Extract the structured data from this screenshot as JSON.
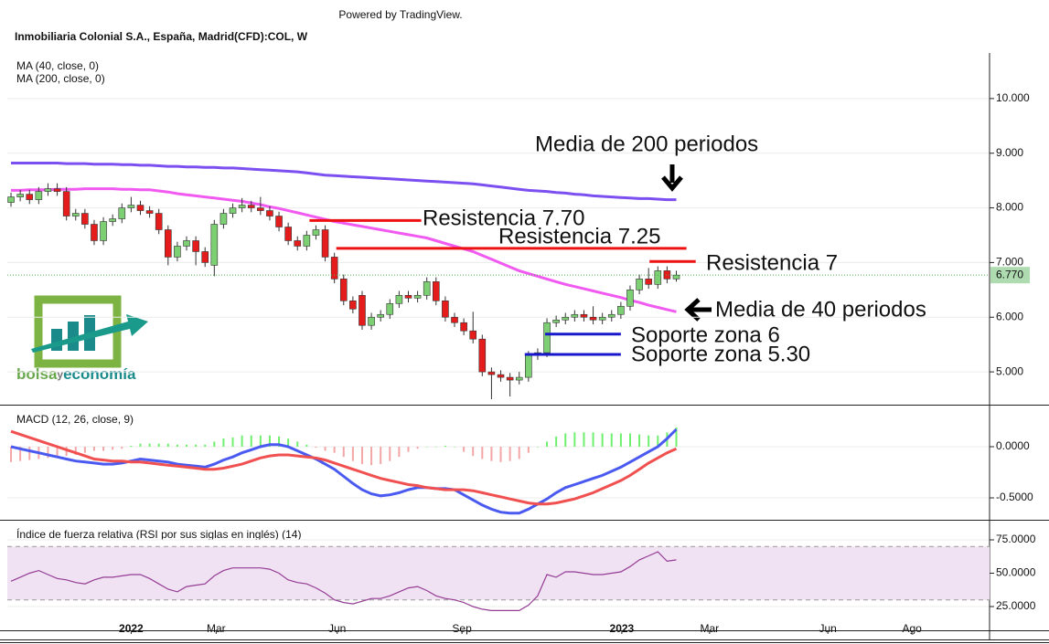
{
  "header": {
    "powered": "Powered by TradingView."
  },
  "chart_data": [
    {
      "type": "candlestick",
      "title": "Inmobiliaria Colonial S.A., España, Madrid(CFD):COL, W",
      "xlim": [
        -0.4,
        105.9
      ],
      "xticks": [
        {
          "value": 13.0,
          "label": "2022"
        },
        {
          "value": 22.2,
          "label": "Mar"
        },
        {
          "value": 35.3,
          "label": "Jun"
        },
        {
          "value": 48.8,
          "label": "Sep"
        },
        {
          "value": 66.1,
          "label": "2023"
        },
        {
          "value": 75.6,
          "label": "Mar"
        },
        {
          "value": 88.4,
          "label": "Jun"
        },
        {
          "value": 97.5,
          "label": "Ago"
        }
      ],
      "ylim": [
        4.4,
        10.8
      ],
      "yticks": [
        {
          "value": 5,
          "label": "5.000"
        },
        {
          "value": 6,
          "label": "6.000"
        },
        {
          "value": 7,
          "label": "7.000"
        },
        {
          "value": 8,
          "label": "8.000"
        },
        {
          "value": 9,
          "label": "9.000"
        },
        {
          "value": 10,
          "label": "10.000"
        }
      ],
      "up_color": "#7ccf72",
      "down_color": "#e41c1c",
      "open": [
        8.1,
        8.2,
        8.25,
        8.15,
        8.3,
        8.35,
        8.3,
        7.85,
        7.9,
        7.7,
        7.4,
        7.75,
        7.8,
        8.0,
        8.05,
        7.95,
        7.9,
        7.6,
        7.1,
        7.3,
        7.4,
        7.2,
        6.95,
        7.7,
        7.9,
        8.0,
        8.05,
        8.0,
        7.95,
        7.85,
        7.65,
        7.4,
        7.3,
        7.5,
        7.6,
        7.1,
        6.7,
        6.3,
        6.4,
        5.85,
        6.0,
        6.05,
        6.25,
        6.4,
        6.35,
        6.4,
        6.65,
        6.3,
        6.0,
        5.9,
        5.75,
        5.6,
        5.0,
        4.95,
        4.9,
        4.85,
        4.9,
        5.3,
        5.35,
        5.9,
        5.95,
        6.0,
        6.05,
        6.0,
        5.95,
        6.0,
        6.05,
        6.2,
        6.5,
        6.7,
        6.6,
        6.85,
        6.7
      ],
      "high": [
        8.28,
        8.33,
        8.33,
        8.38,
        8.45,
        8.45,
        8.38,
        7.98,
        7.98,
        7.78,
        7.83,
        7.88,
        8.08,
        8.2,
        8.13,
        8.03,
        7.98,
        7.68,
        7.38,
        7.48,
        7.48,
        7.28,
        7.78,
        7.98,
        8.08,
        8.18,
        8.13,
        8.2,
        8.03,
        7.93,
        7.73,
        7.48,
        7.58,
        7.68,
        7.68,
        7.18,
        6.78,
        6.38,
        6.48,
        6.08,
        6.13,
        6.33,
        6.48,
        6.48,
        6.48,
        6.73,
        6.73,
        6.38,
        6.08,
        5.98,
        6.1,
        5.68,
        5.08,
        5.03,
        4.98,
        5.0,
        5.38,
        5.43,
        5.98,
        6.03,
        6.08,
        6.13,
        6.13,
        6.2,
        6.08,
        6.13,
        6.28,
        6.58,
        6.78,
        6.9,
        6.93,
        6.93,
        6.85
      ],
      "low": [
        8.02,
        8.12,
        8.07,
        8.07,
        8.22,
        8.22,
        7.77,
        7.77,
        7.62,
        7.32,
        7.32,
        7.67,
        7.72,
        7.92,
        7.87,
        7.82,
        7.52,
        6.95,
        7.02,
        7.22,
        6.95,
        6.92,
        6.75,
        7.62,
        7.82,
        7.92,
        7.92,
        7.87,
        7.77,
        7.57,
        7.32,
        7.22,
        7.22,
        7.42,
        7.02,
        6.62,
        6.22,
        6.07,
        5.77,
        5.77,
        5.92,
        5.97,
        6.17,
        6.27,
        6.27,
        6.32,
        6.22,
        5.92,
        5.82,
        5.67,
        5.52,
        4.92,
        4.5,
        4.82,
        4.55,
        4.77,
        4.82,
        5.22,
        5.27,
        5.82,
        5.87,
        5.92,
        5.92,
        5.87,
        5.87,
        5.92,
        5.97,
        6.12,
        6.42,
        6.52,
        6.52,
        6.62,
        6.65
      ],
      "close": [
        8.2,
        8.25,
        8.15,
        8.3,
        8.35,
        8.3,
        7.85,
        7.9,
        7.7,
        7.4,
        7.75,
        7.8,
        8.0,
        8.05,
        7.95,
        7.9,
        7.6,
        7.1,
        7.3,
        7.4,
        7.2,
        7.0,
        7.7,
        7.9,
        8.0,
        8.05,
        8.0,
        7.95,
        7.85,
        7.65,
        7.4,
        7.3,
        7.5,
        7.6,
        7.1,
        6.7,
        6.3,
        6.15,
        5.85,
        6.0,
        6.05,
        6.25,
        6.4,
        6.35,
        6.4,
        6.65,
        6.3,
        6.0,
        5.9,
        5.75,
        5.6,
        5.0,
        4.95,
        4.9,
        4.85,
        4.9,
        5.3,
        5.35,
        5.9,
        5.95,
        6.0,
        6.05,
        6.0,
        5.95,
        6.0,
        6.05,
        6.2,
        6.5,
        6.7,
        6.6,
        6.85,
        6.7,
        6.77
      ],
      "series": [
        {
          "name": "MA (40, close, 0)",
          "color": "#f05af0",
          "values": [
            8.32,
            8.32,
            8.33,
            8.33,
            8.33,
            8.34,
            8.34,
            8.34,
            8.35,
            8.35,
            8.35,
            8.35,
            8.34,
            8.34,
            8.33,
            8.33,
            8.31,
            8.29,
            8.26,
            8.24,
            8.22,
            8.2,
            8.18,
            8.16,
            8.14,
            8.12,
            8.09,
            8.06,
            8.02,
            7.99,
            7.95,
            7.91,
            7.87,
            7.83,
            7.79,
            7.75,
            7.72,
            7.69,
            7.66,
            7.63,
            7.6,
            7.57,
            7.54,
            7.51,
            7.48,
            7.45,
            7.4,
            7.35,
            7.3,
            7.25,
            7.2,
            7.13,
            7.06,
            6.99,
            6.92,
            6.85,
            6.8,
            6.75,
            6.7,
            6.65,
            6.6,
            6.56,
            6.52,
            6.48,
            6.44,
            6.4,
            6.36,
            6.31,
            6.27,
            6.22,
            6.18,
            6.14,
            6.1
          ]
        },
        {
          "name": "MA (200, close, 0)",
          "color": "#7b4ff0",
          "values": [
            8.82,
            8.82,
            8.82,
            8.82,
            8.82,
            8.82,
            8.81,
            8.81,
            8.81,
            8.8,
            8.8,
            8.8,
            8.79,
            8.79,
            8.78,
            8.78,
            8.77,
            8.76,
            8.76,
            8.75,
            8.75,
            8.74,
            8.74,
            8.73,
            8.73,
            8.72,
            8.71,
            8.7,
            8.69,
            8.68,
            8.67,
            8.66,
            8.64,
            8.62,
            8.6,
            8.59,
            8.58,
            8.57,
            8.56,
            8.55,
            8.54,
            8.53,
            8.52,
            8.51,
            8.5,
            8.49,
            8.48,
            8.47,
            8.46,
            8.45,
            8.44,
            8.42,
            8.4,
            8.38,
            8.36,
            8.34,
            8.32,
            8.31,
            8.3,
            8.28,
            8.27,
            8.25,
            8.24,
            8.22,
            8.21,
            8.2,
            8.19,
            8.18,
            8.17,
            8.17,
            8.16,
            8.15,
            8.15
          ]
        }
      ],
      "last_value": {
        "value": 6.77,
        "label": "6.770"
      },
      "last_color": "#4caf50",
      "annotations": [
        {
          "text": "Media de 200 periodos",
          "color": "#687d8c"
        },
        {
          "text": "Media de 40 periodos",
          "color": "#687d8c"
        },
        {
          "text": "Resistencia 7.70",
          "color": "#1717cc",
          "line_color": "#ee1111",
          "value": 7.77,
          "x_range": [
            32.3,
            44.4
          ]
        },
        {
          "text": "Resistencia 7.25",
          "color": "#1717cc",
          "line_color": "#ee1111",
          "value": 7.26,
          "x_range": [
            35.2,
            73.1
          ]
        },
        {
          "text": "Resistencia 7",
          "color": "#1717cc",
          "line_color": "#ee1111",
          "value": 7.02,
          "x_range": [
            69.1,
            74.1
          ]
        },
        {
          "text": "Soporte zona 6",
          "color": "#ee1111",
          "line_color": "#1717cc",
          "value": 5.69,
          "x_range": [
            57.8,
            66.0
          ]
        },
        {
          "text": "Soporte zona 5.30",
          "color": "#ee1111",
          "line_color": "#1717cc",
          "value": 5.32,
          "x_range": [
            55.6,
            66.0
          ]
        }
      ],
      "logo": {
        "parts": [
          "bolsa",
          "y",
          "economía"
        ]
      }
    },
    {
      "type": "macd",
      "title": "MACD (12, 26, close, 9)",
      "ylim": [
        -0.705,
        0.375
      ],
      "yticks": [
        {
          "value": -0.5,
          "label": "-0.5000"
        },
        {
          "value": 0,
          "label": "0.0000"
        }
      ],
      "histogram": {
        "positive_color": "#6ef06e",
        "negative_color": "#f4a6a6",
        "values": [
          -0.15,
          -0.14,
          -0.13,
          -0.12,
          -0.11,
          -0.1,
          -0.09,
          -0.08,
          -0.06,
          -0.04,
          -0.04,
          -0.03,
          -0.02,
          0.01,
          0.03,
          0.03,
          0.03,
          0.03,
          0.02,
          0.02,
          0.02,
          0.02,
          0.05,
          0.08,
          0.09,
          0.11,
          0.11,
          0.11,
          0.11,
          0.1,
          0.08,
          0.05,
          0.02,
          -0.01,
          -0.04,
          -0.06,
          -0.1,
          -0.14,
          -0.17,
          -0.18,
          -0.17,
          -0.14,
          -0.1,
          -0.05,
          -0.02,
          0.0,
          0.0,
          0.01,
          0.0,
          -0.05,
          -0.09,
          -0.12,
          -0.14,
          -0.15,
          -0.14,
          -0.12,
          -0.06,
          0.0,
          0.05,
          0.1,
          0.13,
          0.14,
          0.14,
          0.14,
          0.13,
          0.13,
          0.13,
          0.13,
          0.12,
          0.11,
          0.11,
          0.14,
          0.19
        ]
      },
      "series": [
        {
          "color": "#4a5af0",
          "values": [
            0.0,
            -0.02,
            -0.04,
            -0.06,
            -0.08,
            -0.1,
            -0.12,
            -0.14,
            -0.15,
            -0.16,
            -0.17,
            -0.17,
            -0.16,
            -0.14,
            -0.12,
            -0.13,
            -0.14,
            -0.15,
            -0.17,
            -0.18,
            -0.19,
            -0.2,
            -0.17,
            -0.13,
            -0.1,
            -0.06,
            -0.03,
            0.0,
            0.02,
            0.02,
            0.0,
            -0.04,
            -0.08,
            -0.12,
            -0.17,
            -0.22,
            -0.29,
            -0.36,
            -0.42,
            -0.46,
            -0.48,
            -0.47,
            -0.45,
            -0.42,
            -0.4,
            -0.4,
            -0.41,
            -0.41,
            -0.42,
            -0.47,
            -0.52,
            -0.57,
            -0.61,
            -0.64,
            -0.65,
            -0.65,
            -0.61,
            -0.56,
            -0.51,
            -0.45,
            -0.4,
            -0.37,
            -0.34,
            -0.31,
            -0.28,
            -0.24,
            -0.2,
            -0.15,
            -0.1,
            -0.05,
            0.0,
            0.08,
            0.17
          ]
        },
        {
          "color": "#f05050",
          "values": [
            0.15,
            0.12,
            0.09,
            0.06,
            0.03,
            0.0,
            -0.03,
            -0.06,
            -0.09,
            -0.12,
            -0.13,
            -0.14,
            -0.14,
            -0.15,
            -0.15,
            -0.16,
            -0.17,
            -0.18,
            -0.19,
            -0.2,
            -0.21,
            -0.22,
            -0.22,
            -0.21,
            -0.19,
            -0.17,
            -0.14,
            -0.11,
            -0.09,
            -0.08,
            -0.08,
            -0.09,
            -0.1,
            -0.11,
            -0.13,
            -0.16,
            -0.19,
            -0.22,
            -0.25,
            -0.28,
            -0.31,
            -0.33,
            -0.35,
            -0.37,
            -0.38,
            -0.4,
            -0.41,
            -0.42,
            -0.42,
            -0.42,
            -0.43,
            -0.45,
            -0.47,
            -0.49,
            -0.51,
            -0.53,
            -0.55,
            -0.56,
            -0.56,
            -0.55,
            -0.53,
            -0.51,
            -0.48,
            -0.45,
            -0.41,
            -0.37,
            -0.33,
            -0.28,
            -0.22,
            -0.16,
            -0.11,
            -0.06,
            -0.02
          ]
        }
      ]
    },
    {
      "type": "rsi",
      "title": "Índice de fuerza relativa (RSI por sus siglas en inglés) (14)",
      "ylim": [
        7.2,
        88
      ],
      "yticks": [
        {
          "value": 25,
          "label": "25.0000"
        },
        {
          "value": 50,
          "label": "50.0000"
        },
        {
          "value": 75,
          "label": "75.0000"
        }
      ],
      "band": [
        30,
        70
      ],
      "band_color": "#f1e2f3",
      "series": [
        {
          "color": "#943c94",
          "values": [
            44,
            47,
            50,
            52,
            49,
            46,
            45,
            43,
            42,
            45,
            47,
            47,
            48,
            49,
            49,
            46,
            42,
            38,
            36,
            40,
            41,
            42,
            48,
            52,
            54,
            54,
            54,
            54,
            53,
            50,
            45,
            43,
            42,
            39,
            35,
            30,
            28,
            27,
            29,
            31,
            31,
            33,
            36,
            39,
            40,
            37,
            33,
            31,
            30,
            28,
            25,
            23,
            22,
            22,
            22,
            22,
            26,
            33,
            49,
            47,
            51,
            51,
            50,
            49,
            49,
            50,
            51,
            55,
            60,
            63,
            66,
            59,
            60
          ]
        }
      ]
    }
  ]
}
